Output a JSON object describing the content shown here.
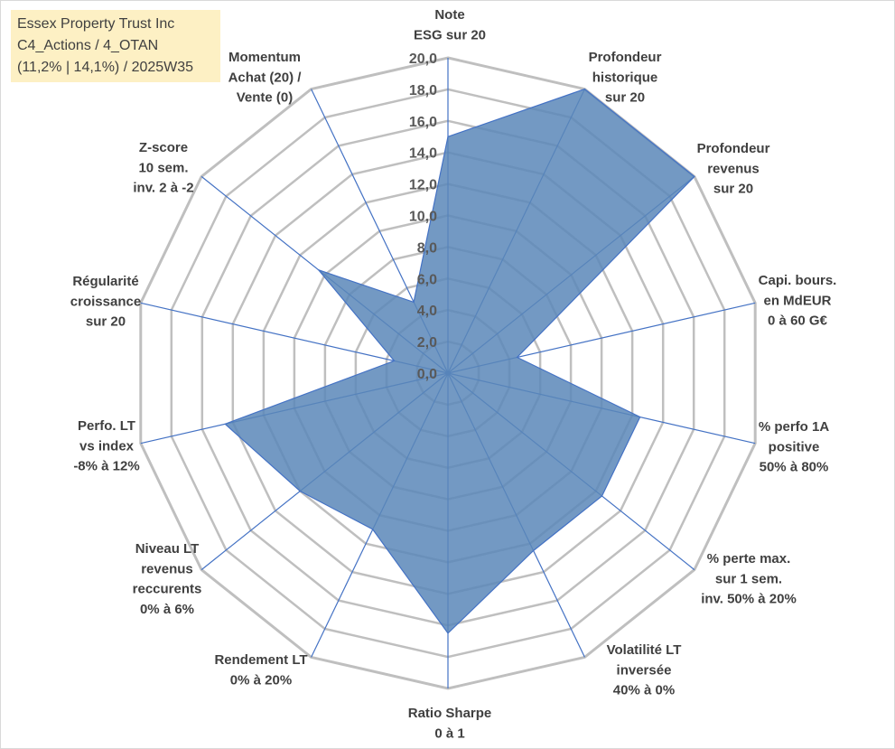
{
  "info": {
    "line1": "Essex Property Trust Inc",
    "line2": "C4_Actions / 4_OTAN",
    "line3": "(11,2% | 14,1%) / 2025W35"
  },
  "chart_data": {
    "type": "radar",
    "title": "",
    "rmin": 0,
    "rmax": 20,
    "tick_step": 2,
    "tick_labels": [
      "0,0",
      "2,0",
      "4,0",
      "6,0",
      "8,0",
      "10,0",
      "12,0",
      "14,0",
      "16,0",
      "18,0",
      "20,0"
    ],
    "grid": true,
    "axes": [
      {
        "label_lines": [
          "Note",
          "ESG sur 20"
        ],
        "value": 15
      },
      {
        "label_lines": [
          "Profondeur",
          "historique",
          "sur 20"
        ],
        "value": 20
      },
      {
        "label_lines": [
          "Profondeur",
          "revenus",
          "sur 20"
        ],
        "value": 20
      },
      {
        "label_lines": [
          "Capi. bours.",
          "en MdEUR",
          "0 à 60 G€"
        ],
        "value": 4.5
      },
      {
        "label_lines": [
          "% perfo 1A",
          "positive",
          "50% à 80%"
        ],
        "value": 12.5
      },
      {
        "label_lines": [
          "% perte max.",
          "sur 1 sem.",
          "inv. 50% à 20%"
        ],
        "value": 12.5
      },
      {
        "label_lines": [
          "Volatilité LT",
          "inversée",
          "40% à 0%"
        ],
        "value": 12.5
      },
      {
        "label_lines": [
          "Ratio Sharpe",
          "0 à 1"
        ],
        "value": 16.5
      },
      {
        "label_lines": [
          "Rendement LT",
          "0% à 20%"
        ],
        "value": 11
      },
      {
        "label_lines": [
          "Niveau LT",
          "revenus",
          "reccurents",
          "0% à 6%"
        ],
        "value": 12
      },
      {
        "label_lines": [
          "Perfo. LT",
          "vs index",
          "-8% à 12%"
        ],
        "value": 14.5
      },
      {
        "label_lines": [
          "Régularité",
          "croissance",
          "sur 20"
        ],
        "value": 3.5
      },
      {
        "label_lines": [
          "Z-score",
          "10 sem.",
          "inv. 2 à -2"
        ],
        "value": 10.5
      },
      {
        "label_lines": [
          "Momentum",
          "Achat (20) /",
          "Vente (0)"
        ],
        "value": 5
      }
    ],
    "series": [
      {
        "color": "#5b87b8",
        "stroke": "#4472c4"
      }
    ],
    "colors": {
      "grid": "#bfbfbf",
      "spoke": "#4472c4",
      "label": "#404040",
      "tick": "#595959"
    }
  }
}
